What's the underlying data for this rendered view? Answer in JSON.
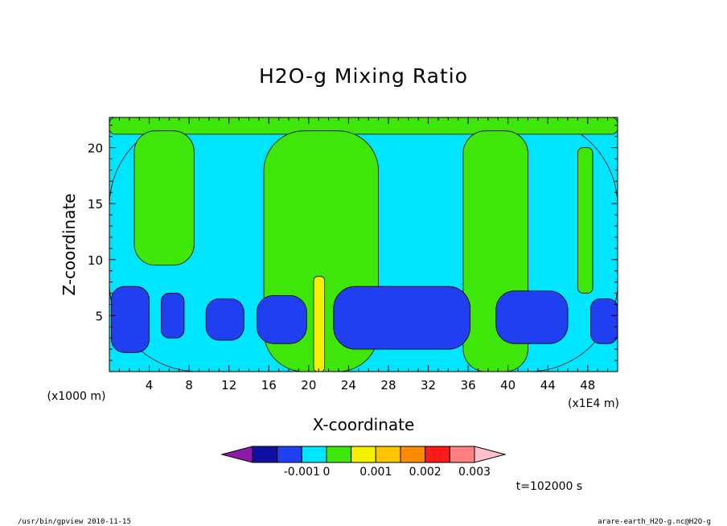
{
  "chart_data": {
    "type": "heatmap",
    "title": "H2O-g Mixing Ratio",
    "xlabel": "X-coordinate",
    "ylabel": "Z-coordinate",
    "x_units": "(x1E4 m)",
    "y_units": "(x1000 m)",
    "x_ticks": [
      4,
      8,
      12,
      16,
      20,
      24,
      28,
      32,
      36,
      40,
      44,
      48
    ],
    "y_ticks": [
      5,
      10,
      15,
      20
    ],
    "xlim": [
      0,
      51
    ],
    "ylim": [
      0,
      22.7
    ],
    "time_label": "t=102000 s",
    "colorbar": {
      "colors": [
        "#8c1aab",
        "#1010a0",
        "#1f3ff0",
        "#00e5ff",
        "#3ee60a",
        "#f2f200",
        "#ffc400",
        "#ff8c00",
        "#ff1a1a",
        "#ff8080",
        "#ffc0cb"
      ],
      "tick_labels": [
        "-0.001",
        "0",
        "0.001",
        "0.002",
        "0.003"
      ]
    },
    "regions": [
      {
        "level": "light-blue",
        "x": [
          0,
          51
        ],
        "z": [
          0,
          22.7
        ]
      },
      {
        "level": "green",
        "x": [
          0,
          51
        ],
        "z": [
          21.2,
          22.7
        ]
      },
      {
        "level": "green",
        "x": [
          2.5,
          8.5
        ],
        "z": [
          9.5,
          21.5
        ]
      },
      {
        "level": "green",
        "x": [
          15.5,
          27
        ],
        "z": [
          0,
          21.5
        ]
      },
      {
        "level": "green",
        "x": [
          35.5,
          42
        ],
        "z": [
          0,
          21.5
        ]
      },
      {
        "level": "green",
        "x": [
          47,
          48.5
        ],
        "z": [
          7,
          20
        ]
      },
      {
        "level": "blue",
        "x": [
          0.2,
          4
        ],
        "z": [
          1.7,
          7.6
        ]
      },
      {
        "level": "blue",
        "x": [
          5.2,
          7.5
        ],
        "z": [
          3,
          7
        ]
      },
      {
        "level": "blue",
        "x": [
          9.7,
          13.5
        ],
        "z": [
          2.8,
          6.5
        ]
      },
      {
        "level": "blue",
        "x": [
          14.8,
          19.8
        ],
        "z": [
          2.5,
          6.8
        ]
      },
      {
        "level": "blue",
        "x": [
          22.5,
          36.2
        ],
        "z": [
          2,
          7.6
        ]
      },
      {
        "level": "blue",
        "x": [
          38.8,
          46
        ],
        "z": [
          2.5,
          7.2
        ]
      },
      {
        "level": "blue",
        "x": [
          48.3,
          51
        ],
        "z": [
          2.5,
          6.5
        ]
      },
      {
        "level": "yellow",
        "x": [
          20.5,
          21.6
        ],
        "z": [
          0,
          8.5
        ]
      }
    ]
  },
  "footer": {
    "left": "/usr/bin/gpview   2010-11-15",
    "right": "arare-earth_H2O-g.nc@H2O-g"
  }
}
